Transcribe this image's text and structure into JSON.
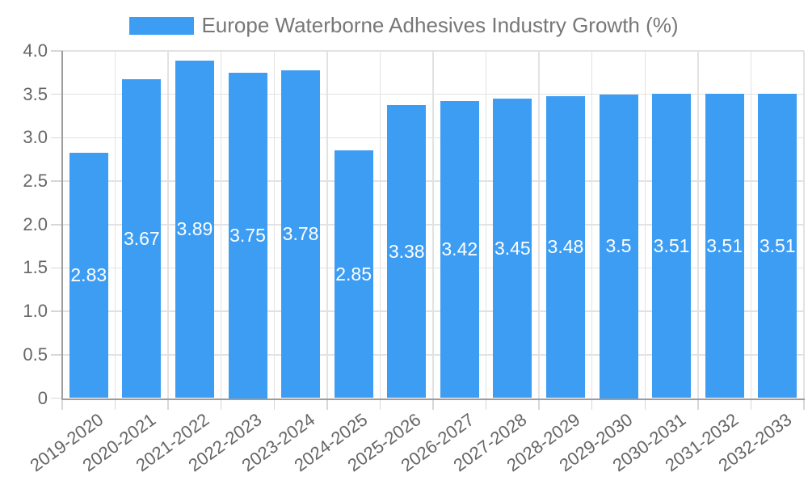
{
  "chart_data": {
    "type": "bar",
    "title": "Europe Waterborne Adhesives Industry Growth (%)",
    "xlabel": "",
    "ylabel": "",
    "categories": [
      "2019-2020",
      "2020-2021",
      "2021-2022",
      "2022-2023",
      "2023-2024",
      "2024-2025",
      "2025-2026",
      "2026-2027",
      "2027-2028",
      "2028-2029",
      "2029-2030",
      "2030-2031",
      "2031-2032",
      "2032-2033"
    ],
    "series": [
      {
        "name": "Europe Waterborne Adhesives Industry Growth (%)",
        "values": [
          2.83,
          3.67,
          3.89,
          3.75,
          3.78,
          2.85,
          3.38,
          3.42,
          3.45,
          3.48,
          3.5,
          3.51,
          3.51,
          3.51
        ]
      }
    ],
    "values": [
      2.83,
      3.67,
      3.89,
      3.75,
      3.78,
      2.85,
      3.38,
      3.42,
      3.45,
      3.48,
      3.5,
      3.51,
      3.51,
      3.51
    ],
    "value_labels": [
      "2.83",
      "3.67",
      "3.89",
      "3.75",
      "3.78",
      "2.85",
      "3.38",
      "3.42",
      "3.45",
      "3.48",
      "3.5",
      "3.51",
      "3.51",
      "3.51"
    ],
    "ylim": [
      0,
      4.0
    ],
    "yticks": [
      "0",
      "0.5",
      "1.0",
      "1.5",
      "2.0",
      "2.5",
      "3.0",
      "3.5",
      "4.0"
    ],
    "grid": true,
    "legend_position": "top",
    "value_label_position": "inside-center",
    "bar_color": "#3d9df3",
    "grid_color": "#e2e2e2",
    "axis_color": "#9d9d9d",
    "tick_mark_color": "#d7d7d7",
    "tick_label_color": "#666666",
    "title_color": "#777777",
    "value_label_color": "#ffffff"
  }
}
